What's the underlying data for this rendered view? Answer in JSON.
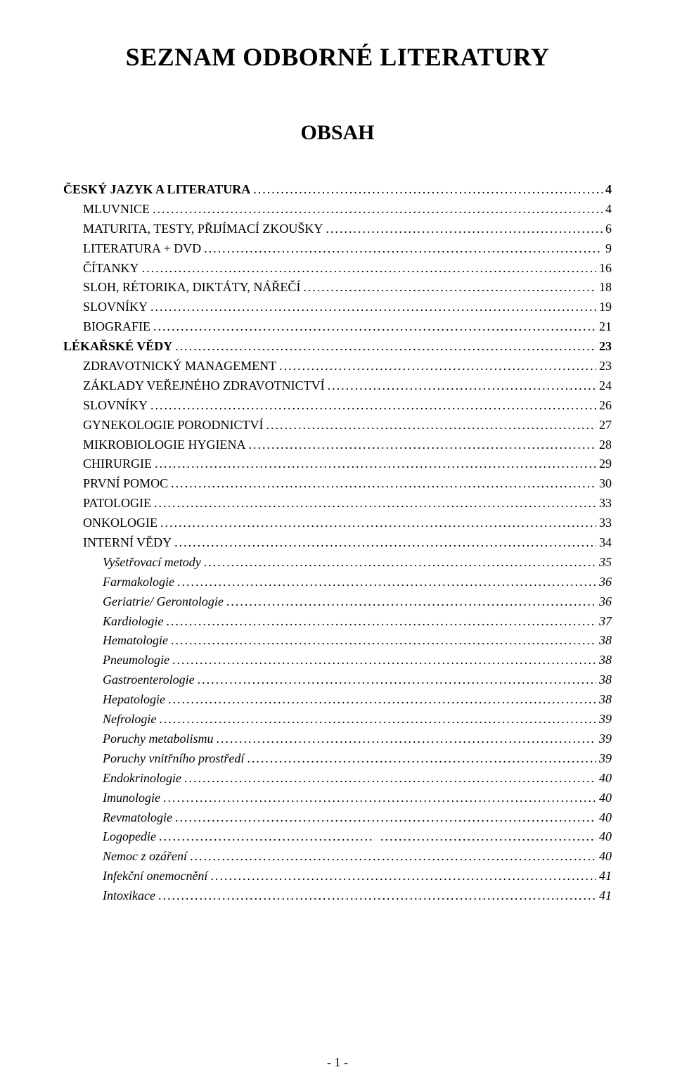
{
  "document": {
    "title": "SEZNAM ODBORNÉ LITERATURY",
    "subtitle": "OBSAH",
    "page_number": "- 1 -",
    "colors": {
      "background": "#ffffff",
      "text": "#000000"
    },
    "typography": {
      "title_fontsize": 36,
      "subtitle_fontsize": 30,
      "body_fontsize": 18,
      "font_family": "Times New Roman"
    },
    "toc": [
      {
        "label": "ČESKÝ JAZYK A LITERATURA",
        "page": "4",
        "style": "bold",
        "indent": 0
      },
      {
        "label": "MLUVNICE",
        "page": "4",
        "style": "normal",
        "indent": 1
      },
      {
        "label": "MATURITA, TESTY, PŘIJÍMACÍ ZKOUŠKY",
        "page": "6",
        "style": "normal",
        "indent": 1
      },
      {
        "label": "LITERATURA + DVD",
        "page": "9",
        "style": "normal",
        "indent": 1
      },
      {
        "label": "ČÍTANKY",
        "page": "16",
        "style": "normal",
        "indent": 1
      },
      {
        "label": "SLOH, RÉTORIKA, DIKTÁTY, NÁŘEČÍ",
        "page": "18",
        "style": "normal",
        "indent": 1
      },
      {
        "label": "SLOVNÍKY",
        "page": "19",
        "style": "normal",
        "indent": 1
      },
      {
        "label": "BIOGRAFIE",
        "page": "21",
        "style": "normal",
        "indent": 1
      },
      {
        "label": "LÉKAŘSKÉ VĚDY",
        "page": "23",
        "style": "bold",
        "indent": 0
      },
      {
        "label": "ZDRAVOTNICKÝ MANAGEMENT",
        "page": "23",
        "style": "normal",
        "indent": 1
      },
      {
        "label": "ZÁKLADY VEŘEJNÉHO ZDRAVOTNICTVÍ",
        "page": "24",
        "style": "normal",
        "indent": 1
      },
      {
        "label": "SLOVNÍKY",
        "page": "26",
        "style": "normal",
        "indent": 1
      },
      {
        "label": "GYNEKOLOGIE PORODNICTVÍ",
        "page": "27",
        "style": "normal",
        "indent": 1
      },
      {
        "label": "MIKROBIOLOGIE HYGIENA",
        "page": "28",
        "style": "normal",
        "indent": 1
      },
      {
        "label": "CHIRURGIE",
        "page": "29",
        "style": "normal",
        "indent": 1
      },
      {
        "label": "PRVNÍ POMOC",
        "page": "30",
        "style": "normal",
        "indent": 1
      },
      {
        "label": "PATOLOGIE",
        "page": "33",
        "style": "normal",
        "indent": 1
      },
      {
        "label": "ONKOLOGIE",
        "page": "33",
        "style": "normal",
        "indent": 1
      },
      {
        "label": "INTERNÍ VĚDY",
        "page": "34",
        "style": "normal",
        "indent": 1
      },
      {
        "label": "Vyšetřovací metody",
        "page": "35",
        "style": "italic",
        "indent": 2
      },
      {
        "label": "Farmakologie",
        "page": "36",
        "style": "italic",
        "indent": 2
      },
      {
        "label": "Geriatrie/ Gerontologie",
        "page": "36",
        "style": "italic",
        "indent": 2
      },
      {
        "label": "Kardiologie",
        "page": "37",
        "style": "italic",
        "indent": 2
      },
      {
        "label": "Hematologie",
        "page": "38",
        "style": "italic",
        "indent": 2
      },
      {
        "label": "Pneumologie",
        "page": "38",
        "style": "italic",
        "indent": 2
      },
      {
        "label": "Gastroenterologie",
        "page": "38",
        "style": "italic",
        "indent": 2
      },
      {
        "label": "Hepatologie",
        "page": "38",
        "style": "italic",
        "indent": 2
      },
      {
        "label": "Nefrologie",
        "page": "39",
        "style": "italic",
        "indent": 2
      },
      {
        "label": "Poruchy metabolismu",
        "page": "39",
        "style": "italic",
        "indent": 2
      },
      {
        "label": "Poruchy vnitřního prostředí",
        "page": "39",
        "style": "italic",
        "indent": 2
      },
      {
        "label": "Endokrinologie",
        "page": "40",
        "style": "italic",
        "indent": 2
      },
      {
        "label": "Imunologie",
        "page": "40",
        "style": "italic",
        "indent": 2
      },
      {
        "label": "Revmatologie",
        "page": "40",
        "style": "italic",
        "indent": 2
      },
      {
        "label": "Logopedie",
        "page": "40",
        "style": "italic",
        "indent": 2,
        "twoleader": true
      },
      {
        "label": "Nemoc z ozáření",
        "page": "40",
        "style": "italic",
        "indent": 2
      },
      {
        "label": "Infekční onemocnění",
        "page": "41",
        "style": "italic",
        "indent": 2
      },
      {
        "label": "Intoxikace",
        "page": "41",
        "style": "italic",
        "indent": 2
      }
    ]
  }
}
